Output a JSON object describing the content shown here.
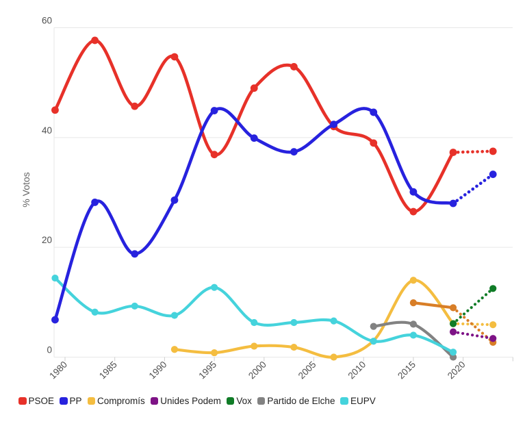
{
  "chart_data": {
    "type": "line",
    "title": "",
    "xlabel": "",
    "ylabel": "% Votos",
    "ylim": [
      0,
      60
    ],
    "y_ticks": [
      {
        "label": "0",
        "value": 0
      },
      {
        "label": "20",
        "value": 20
      },
      {
        "label": "40",
        "value": 40
      },
      {
        "label": "60",
        "value": 60
      }
    ],
    "x_ticks": [
      {
        "label": "1980",
        "year": 1980
      },
      {
        "label": "1985",
        "year": 1985
      },
      {
        "label": "1990",
        "year": 1990
      },
      {
        "label": "1995",
        "year": 1995
      },
      {
        "label": "2000",
        "year": 2000
      },
      {
        "label": "2005",
        "year": 2005
      },
      {
        "label": "2010",
        "year": 2010
      },
      {
        "label": "2015",
        "year": 2015
      },
      {
        "label": "2020",
        "year": 2020
      },
      {
        "label": "",
        "year": 2025
      }
    ],
    "grid": "horizontal",
    "legend_position": "bottom-left",
    "projection_style": "dotted",
    "series": [
      {
        "name": "PSOE",
        "color": "#e73129",
        "thick": true,
        "x": [
          1979,
          1983,
          1987,
          1991,
          1995,
          1999,
          2003,
          2007,
          2011,
          2015,
          2019
        ],
        "y": [
          45.0,
          57.7,
          45.7,
          54.7,
          36.9,
          49.0,
          52.9,
          42.0,
          39.0,
          26.5,
          37.3
        ],
        "projection": {
          "x": [
            2019,
            2023
          ],
          "y": [
            37.3,
            37.5
          ]
        }
      },
      {
        "name": "Compromís",
        "color": "#f4bd40",
        "thick": false,
        "x": [
          1991,
          1995,
          1999,
          2003,
          2007,
          2011,
          2015,
          2019
        ],
        "y": [
          1.4,
          0.8,
          2.0,
          1.8,
          0.0,
          3.0,
          14.0,
          6.1
        ],
        "skip_markers": [
          2011
        ],
        "projection": {
          "x": [
            2019,
            2023
          ],
          "y": [
            6.1,
            5.9
          ]
        }
      },
      {
        "name": "",
        "color": "#d87e27",
        "thick": false,
        "x": [
          2015,
          2019
        ],
        "y": [
          9.9,
          9.0
        ],
        "projection": {
          "x": [
            2019,
            2023
          ],
          "y": [
            9.0,
            2.7
          ]
        }
      },
      {
        "name": "Unides Podem",
        "color": "#7e1386",
        "thick": false,
        "x": [
          2019
        ],
        "y": [
          4.6
        ],
        "projection": {
          "x": [
            2019,
            2023
          ],
          "y": [
            4.6,
            3.4
          ]
        }
      },
      {
        "name": "Vox",
        "color": "#107c27",
        "thick": false,
        "x": [
          2019
        ],
        "y": [
          6.1
        ],
        "projection": {
          "x": [
            2019,
            2023
          ],
          "y": [
            6.1,
            12.5
          ]
        }
      },
      {
        "name": "Partido de Elche",
        "color": "#828282",
        "thick": false,
        "x": [
          2011,
          2015,
          2019
        ],
        "y": [
          5.6,
          6.0,
          0.0
        ]
      },
      {
        "name": "EUPV",
        "color": "#45d3dc",
        "thick": false,
        "x": [
          1979,
          1983,
          1987,
          1991,
          1995,
          1999,
          2003,
          2007,
          2011,
          2015,
          2019
        ],
        "y": [
          14.4,
          8.2,
          9.3,
          7.6,
          12.7,
          6.3,
          6.3,
          6.6,
          2.9,
          4.0,
          0.9
        ]
      },
      {
        "name": "PP",
        "color": "#2722de",
        "thick": true,
        "x": [
          1979,
          1983,
          1987,
          1991,
          1995,
          1999,
          2003,
          2007,
          2011,
          2015,
          2019
        ],
        "y": [
          6.8,
          28.2,
          18.8,
          28.6,
          44.9,
          39.9,
          37.4,
          42.4,
          44.6,
          30.1,
          28.0
        ],
        "projection": {
          "x": [
            2019,
            2023
          ],
          "y": [
            28.0,
            33.3
          ]
        }
      }
    ],
    "legend": [
      {
        "label": "PSOE",
        "color": "#e73129"
      },
      {
        "label": "PP",
        "color": "#2722de"
      },
      {
        "label": "Compromís",
        "color": "#f4bd40"
      },
      {
        "label": "Unides Podem",
        "color": "#7e1386"
      },
      {
        "label": "Vox",
        "color": "#107c27"
      },
      {
        "label": "Partido de Elche",
        "color": "#828282"
      },
      {
        "label": "EUPV",
        "color": "#45d3dc"
      }
    ]
  }
}
